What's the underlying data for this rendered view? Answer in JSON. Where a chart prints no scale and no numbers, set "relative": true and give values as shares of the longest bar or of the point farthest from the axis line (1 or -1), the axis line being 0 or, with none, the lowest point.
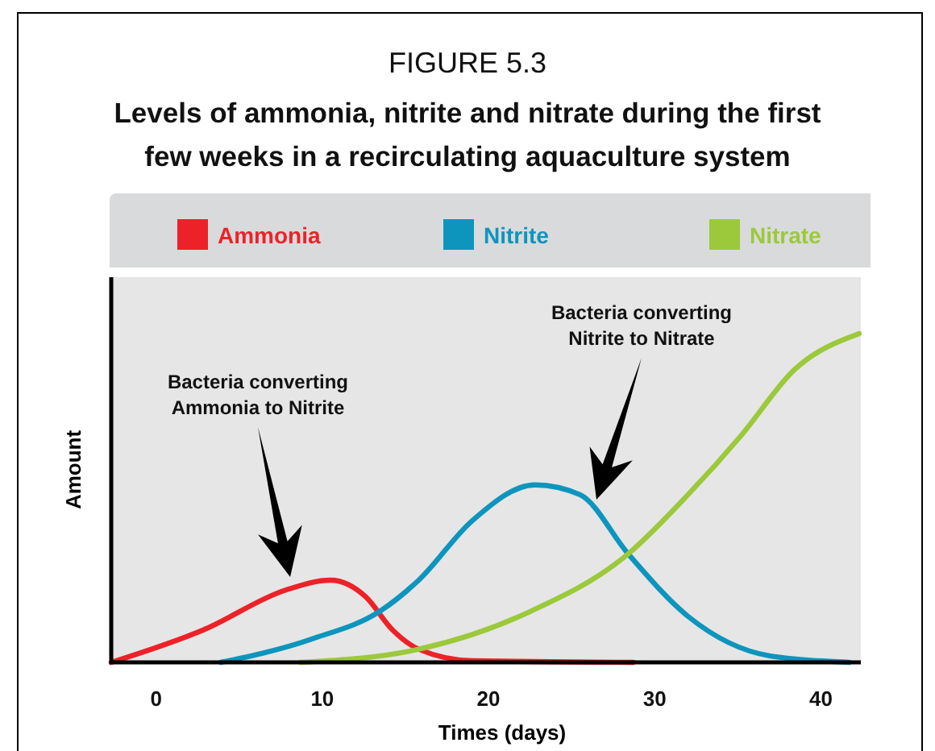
{
  "chart_data": {
    "type": "line",
    "title": "FIGURE 5.3",
    "subtitle": "Levels of ammonia, nitrite and nitrate during the first few weeks in a recirculating aquaculture system",
    "xlabel": "Times (days)",
    "ylabel": "Amount",
    "relative": true,
    "legend": "top",
    "xlim": [
      -2.7,
      42.4
    ],
    "xticks": [
      0,
      10,
      20,
      30,
      40
    ],
    "series": [
      {
        "name": "Ammonia",
        "color": "#ed2229",
        "x": [
          -2.7,
          2.9,
          7.8,
          10.5,
          12.6,
          14.2,
          15.8,
          19,
          28.7
        ],
        "values": [
          0,
          0.1,
          0.22,
          0.25,
          0.2,
          0.1,
          0.04,
          0.005,
          0
        ]
      },
      {
        "name": "Nitrite",
        "color": "#0e95bd",
        "x": [
          3.9,
          9.3,
          13.6,
          15.8,
          19,
          22.8,
          25.5,
          28.4,
          32,
          36.9,
          41.7
        ],
        "values": [
          0,
          0.07,
          0.16,
          0.25,
          0.43,
          0.54,
          0.51,
          0.33,
          0.14,
          0.02,
          0
        ]
      },
      {
        "name": "Nitrate",
        "color": "#9cc93b",
        "x": [
          8.7,
          15.8,
          22.3,
          28.4,
          32,
          35.2,
          38.4,
          42.3
        ],
        "values": [
          0,
          0.04,
          0.15,
          0.33,
          0.51,
          0.69,
          0.89,
          1
        ]
      }
    ],
    "annotations": [
      "Bacteria converting Ammonia to Nitrite",
      "Bacteria converting Nitrite to Nitrate"
    ]
  }
}
